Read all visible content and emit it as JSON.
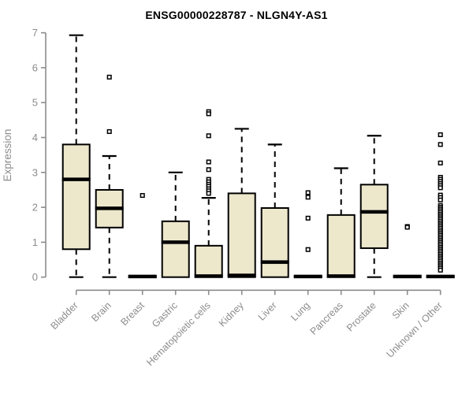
{
  "chart_data": {
    "type": "box",
    "title": "ENSG00000228787 - NLGN4Y-AS1",
    "xlabel": "",
    "ylabel": "Expression",
    "ylim": [
      0,
      7
    ],
    "yticks": [
      0,
      1,
      2,
      3,
      4,
      5,
      6,
      7
    ],
    "grid": "off",
    "legend": "none",
    "categories": [
      "Bladder",
      "Brain",
      "Breast",
      "Gastric",
      "Hematopoietic cells",
      "Kidney",
      "Liver",
      "Lung",
      "Pancreas",
      "Prostate",
      "Skin",
      "Unknown / Other"
    ],
    "series": [
      {
        "name": "Bladder",
        "low": 0,
        "q1": 0.8,
        "median": 2.8,
        "q3": 3.8,
        "high": 6.93,
        "outliers": []
      },
      {
        "name": "Brain",
        "low": 0,
        "q1": 1.42,
        "median": 1.97,
        "q3": 2.5,
        "high": 3.47,
        "outliers": [
          5.73,
          4.17
        ]
      },
      {
        "name": "Breast",
        "low": 0,
        "q1": 0,
        "median": 0.02,
        "q3": 0.03,
        "high": 0.03,
        "outliers": [
          2.34
        ]
      },
      {
        "name": "Gastric",
        "low": 0,
        "q1": 0,
        "median": 1.0,
        "q3": 1.6,
        "high": 3.0,
        "outliers": []
      },
      {
        "name": "Hematopoietic cells",
        "low": 0,
        "q1": 0,
        "median": 0.03,
        "q3": 0.9,
        "high": 2.27,
        "outliers": [
          4.74,
          4.68,
          4.05,
          3.3,
          3.08,
          2.8,
          2.73,
          2.66,
          2.6,
          2.53,
          2.47,
          2.4
        ]
      },
      {
        "name": "Kidney",
        "low": 0,
        "q1": 0,
        "median": 0.05,
        "q3": 2.4,
        "high": 4.25,
        "outliers": []
      },
      {
        "name": "Liver",
        "low": 0,
        "q1": 0,
        "median": 0.43,
        "q3": 1.98,
        "high": 3.8,
        "outliers": []
      },
      {
        "name": "Lung",
        "low": 0,
        "q1": 0,
        "median": 0.02,
        "q3": 0.03,
        "high": 0.03,
        "outliers": [
          2.42,
          2.29,
          1.69,
          0.79
        ]
      },
      {
        "name": "Pancreas",
        "low": 0,
        "q1": 0,
        "median": 0.03,
        "q3": 1.78,
        "high": 3.12,
        "outliers": []
      },
      {
        "name": "Prostate",
        "low": 0,
        "q1": 0.83,
        "median": 1.87,
        "q3": 2.65,
        "high": 4.05,
        "outliers": []
      },
      {
        "name": "Skin",
        "low": 0,
        "q1": 0,
        "median": 0.02,
        "q3": 0.03,
        "high": 0.03,
        "outliers": [
          1.45,
          1.43
        ]
      },
      {
        "name": "Unknown / Other",
        "low": 0,
        "q1": 0,
        "median": 0.02,
        "q3": 0.03,
        "high": 0.03,
        "outliers": [
          4.08,
          3.8,
          3.27,
          2.86,
          2.8,
          2.74,
          2.68,
          2.62,
          2.56,
          2.35,
          2.28,
          2.21,
          2.05,
          2.0,
          1.95,
          1.9,
          1.85,
          1.8,
          1.75,
          1.7,
          1.65,
          1.6,
          1.55,
          1.5,
          1.45,
          1.4,
          1.35,
          1.3,
          1.25,
          1.2,
          1.15,
          1.1,
          1.05,
          1.0,
          0.95,
          0.9,
          0.85,
          0.8,
          0.75,
          0.7,
          0.65,
          0.6,
          0.55,
          0.5,
          0.45,
          0.4,
          0.35,
          0.3,
          0.25,
          0.2
        ]
      }
    ],
    "colors": {
      "box_fill": "#EDE8CC",
      "box_border": "#000000",
      "median": "#000000",
      "whisker": "#000000",
      "outlier_stroke": "#000000",
      "outlier_fill": "#FFFFFF",
      "axis": "#8C8C8C",
      "tick_label": "#8C8C8C",
      "title": "#000000",
      "background": "#FFFFFF"
    }
  }
}
